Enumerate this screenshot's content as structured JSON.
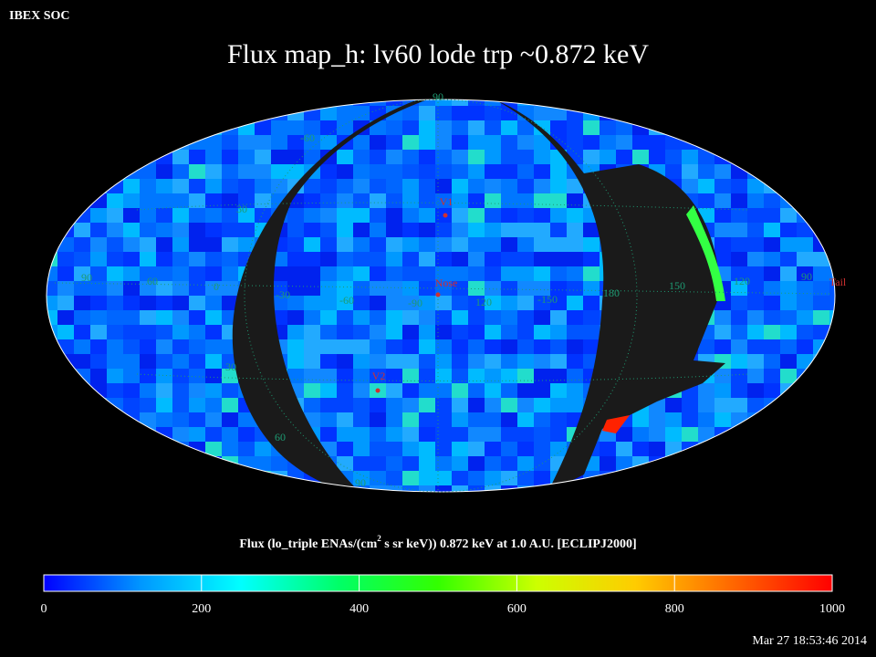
{
  "header": {
    "org": "IBEX SOC",
    "title": "Flux   map_h: lv60 lode trp ~0.872 keV",
    "timestamp": "Mar 27 18:53:46 2014"
  },
  "map": {
    "grid_labels": [
      "90",
      "-60",
      "30",
      "90",
      "60",
      "0",
      "-30",
      "-60",
      "-90",
      "120",
      "-150",
      "180",
      "150",
      "120",
      "90",
      "30",
      "60",
      "90"
    ],
    "markers": [
      "V1",
      "Nose",
      "V2",
      "Tail"
    ]
  },
  "colorbar": {
    "title": [
      "Flux (lo_triple ENAs/(cm",
      "2",
      " s sr keV))  0.872 keV at 1.0 A.U. [ECLIPJ2000]"
    ],
    "lim": [
      0,
      1000
    ],
    "ticks": [
      0,
      200,
      400,
      600,
      800,
      1000
    ],
    "colors": [
      "#0000ff",
      "#0099ff",
      "#00ffff",
      "#00ff66",
      "#33ff00",
      "#ccff00",
      "#ffcc00",
      "#ff6600",
      "#ff0000"
    ]
  }
}
